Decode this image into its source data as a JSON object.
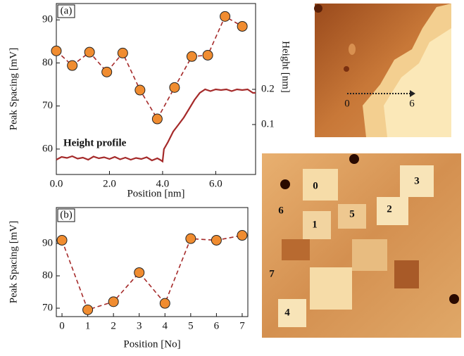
{
  "chart_data": [
    {
      "type": "line",
      "label": "(a)",
      "xlabel": "Position [nm]",
      "ylabel": "Peak Spacing [mV]",
      "y2label": "Height [nm]",
      "xlim": [
        0,
        7.5
      ],
      "ylim": [
        54.1,
        93.8
      ],
      "y2lim": [
        -0.042,
        0.444
      ],
      "xticks": [
        {
          "value": 0,
          "label": "0.0"
        },
        {
          "value": 2,
          "label": "2.0"
        },
        {
          "value": 4,
          "label": "4.0"
        },
        {
          "value": 6,
          "label": "6.0"
        }
      ],
      "yticks": [
        60,
        70,
        80,
        90
      ],
      "y2ticks": [
        0.1,
        0.2
      ],
      "series": [
        {
          "x": [
            0,
            0.6,
            1.25,
            1.9,
            2.5,
            3.15,
            3.8,
            4.45,
            5.1,
            5.7,
            6.35,
            7.0
          ],
          "values": [
            82.8,
            79.4,
            82.5,
            77.9,
            82.3,
            73.7,
            67.0,
            74.3,
            81.5,
            81.8,
            90.8,
            88.5
          ],
          "color": "#a52a2a",
          "marker_color": "#f08c30",
          "linestyle": "dashed",
          "marker": "o"
        },
        {
          "name": "Height profile",
          "axis": "y2",
          "x": [
            0,
            0.2,
            0.4,
            0.6,
            0.8,
            1.0,
            1.2,
            1.4,
            1.6,
            1.8,
            2.0,
            2.2,
            2.4,
            2.6,
            2.8,
            3.0,
            3.2,
            3.4,
            3.6,
            3.8,
            3.9,
            4.0,
            4.05,
            4.2,
            4.4,
            4.6,
            4.8,
            5.0,
            5.2,
            5.4,
            5.6,
            5.8,
            6.0,
            6.2,
            6.4,
            6.6,
            6.8,
            7.0,
            7.2,
            7.4,
            7.5
          ],
          "values": [
            0.0,
            0.008,
            0.005,
            0.01,
            0.003,
            0.006,
            0.0,
            0.009,
            0.004,
            0.007,
            0.002,
            0.008,
            0.001,
            0.006,
            0.0,
            0.005,
            0.002,
            0.007,
            -0.002,
            0.004,
            0.0,
            -0.005,
            0.03,
            0.05,
            0.08,
            0.1,
            0.12,
            0.145,
            0.17,
            0.19,
            0.2,
            0.195,
            0.2,
            0.198,
            0.2,
            0.195,
            0.2,
            0.198,
            0.2,
            0.19,
            0.19
          ],
          "color": "#a52a2a",
          "linestyle": "solid"
        }
      ]
    },
    {
      "type": "line",
      "label": "(b)",
      "xlabel": "Position [No]",
      "ylabel": "Peak Spacing [mV]",
      "xlim": [
        -0.22,
        7.22
      ],
      "ylim": [
        67.4,
        101.1
      ],
      "xticks": [
        0,
        1,
        2,
        3,
        4,
        5,
        6,
        7
      ],
      "yticks": [
        70,
        80,
        90
      ],
      "series": [
        {
          "x": [
            0,
            1,
            2,
            3,
            4,
            5,
            6,
            7
          ],
          "values": [
            91,
            69.5,
            72,
            81,
            71.5,
            91.5,
            91,
            92.5
          ],
          "color": "#a52a2a",
          "marker_color": "#f08c30",
          "linestyle": "dashed",
          "marker": "o"
        }
      ]
    }
  ],
  "images": {
    "top": {
      "labels": [
        "0",
        "6"
      ]
    },
    "bottom": {
      "labels": [
        "0",
        "1",
        "2",
        "3",
        "4",
        "5",
        "6",
        "7"
      ]
    }
  }
}
